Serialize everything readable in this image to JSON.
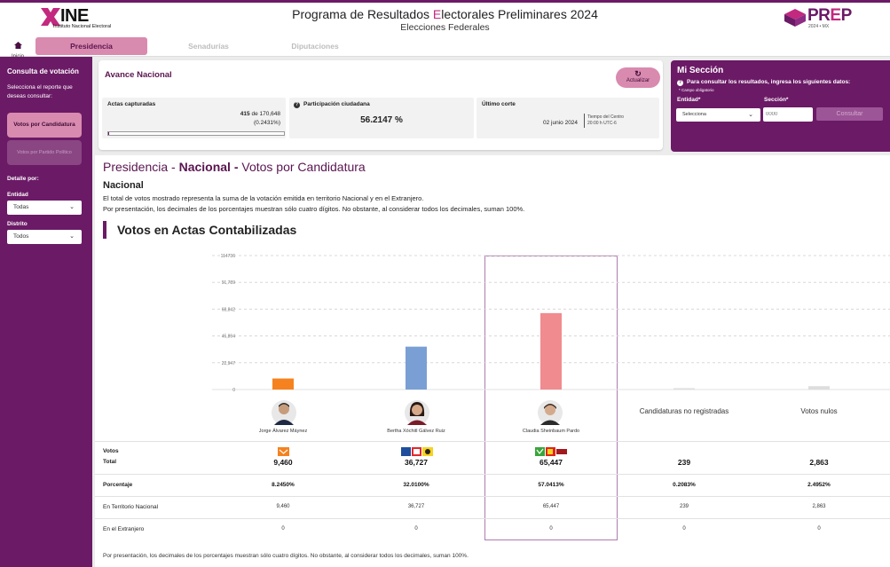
{
  "header": {
    "ine_word": "INE",
    "ine_sub": "Instituto Nacional Electoral",
    "title_prefix": "Programa de Resultados ",
    "title_highlight": "E",
    "title_suffix": "lectorales Preliminares 2024",
    "subtitle": "Elecciones Federales",
    "prep_word_a": "PR",
    "prep_word_b": "E",
    "prep_word_c": "P",
    "prep_sub": "2024 • MX",
    "accent": "#6b1a66",
    "highlight": "#c2297f"
  },
  "tabs": {
    "home_label": "Inicio",
    "items": [
      "Presidencia",
      "Senadurías",
      "Diputaciones"
    ]
  },
  "sidebar": {
    "heading": "Consulta de votación",
    "instruction": "Selecciona el reporte que deseas consultar:",
    "btn_candidatura": "Votos por Candidatura",
    "btn_partido": "Votos por Partido Político",
    "detalle_label": "Detalle por:",
    "entidad_label": "Entidad",
    "entidad_value": "Todas",
    "distrito_label": "Distrito",
    "distrito_value": "Todos"
  },
  "avance": {
    "title": "Avance Nacional",
    "refresh_label": "Actualizar",
    "actas_label": "Actas capturadas",
    "actas_count": "415",
    "actas_of": " de 170,648",
    "actas_pct": "(0.2431%)",
    "actas_progress": 0.002431,
    "participacion_label": "Participación ciudadana",
    "participacion_value": "56.2147 %",
    "corte_label": "Último corte",
    "corte_date": "02 junio 2024",
    "corte_tz_1": "Tiempo del Centro",
    "corte_tz_2": "20:00 h UTC-6"
  },
  "mi_seccion": {
    "title": "Mi Sección",
    "info": "Para consultar los resultados, ingresa los siguientes datos:",
    "required": "* Campo obligatorio",
    "entidad_label": "Entidad*",
    "entidad_value": "Selecciona",
    "seccion_label": "Sección*",
    "seccion_placeholder": "0000",
    "submit": "Consultar"
  },
  "main": {
    "title_a": "Presidencia - ",
    "title_b": "Nacional - ",
    "title_c": "Votos por Candidatura",
    "subtitle": "Nacional",
    "para1": "El total de votos mostrado representa la suma de la votación emitida en territorio Nacional y en el Extranjero.",
    "para2": "Por presentación, los decimales de los porcentajes muestran sólo cuatro dígitos. No obstante, al considerar todos los decimales, suman 100%.",
    "section_title": "Votos en Actas Contabilizadas",
    "footnote": "Por presentación, los decimales de los porcentajes muestran sólo cuatro dígitos. No obstante, al considerar todos los decimales, suman 100%.",
    "row_votos": "Votos",
    "row_total": "Total",
    "row_porcentaje": "Porcentaje",
    "row_territorio": "En Territorio Nacional",
    "row_extranjero": "En el Extranjero"
  },
  "chart_data": {
    "type": "bar",
    "categories": [
      "Jorge Álvarez Máynez",
      "Bertha Xóchitl Gálvez Ruiz",
      "Claudia Sheinbaum Pardo",
      "Candidaturas no registradas",
      "Votos nulos"
    ],
    "values": [
      9460,
      36727,
      65447,
      239,
      2863
    ],
    "colors": [
      "#f5821f",
      "#7a9fd4",
      "#f08b8f",
      "#dddddd",
      "#dddddd"
    ],
    "yticks": [
      "114736",
      "91,789",
      "68,842",
      "45,894",
      "22,947",
      "0"
    ],
    "ylim": [
      0,
      114736
    ],
    "grid": true,
    "selected_index": 2
  },
  "table": {
    "totals": [
      "9,460",
      "36,727",
      "65,447",
      "239",
      "2,863"
    ],
    "percents": [
      "8.2450%",
      "32.0100%",
      "57.0413%",
      "0.2083%",
      "2.4952%"
    ],
    "territorio": [
      "9,460",
      "36,727",
      "65,447",
      "239",
      "2,863"
    ],
    "extranjero": [
      "0",
      "0",
      "0",
      "0",
      "0"
    ]
  }
}
